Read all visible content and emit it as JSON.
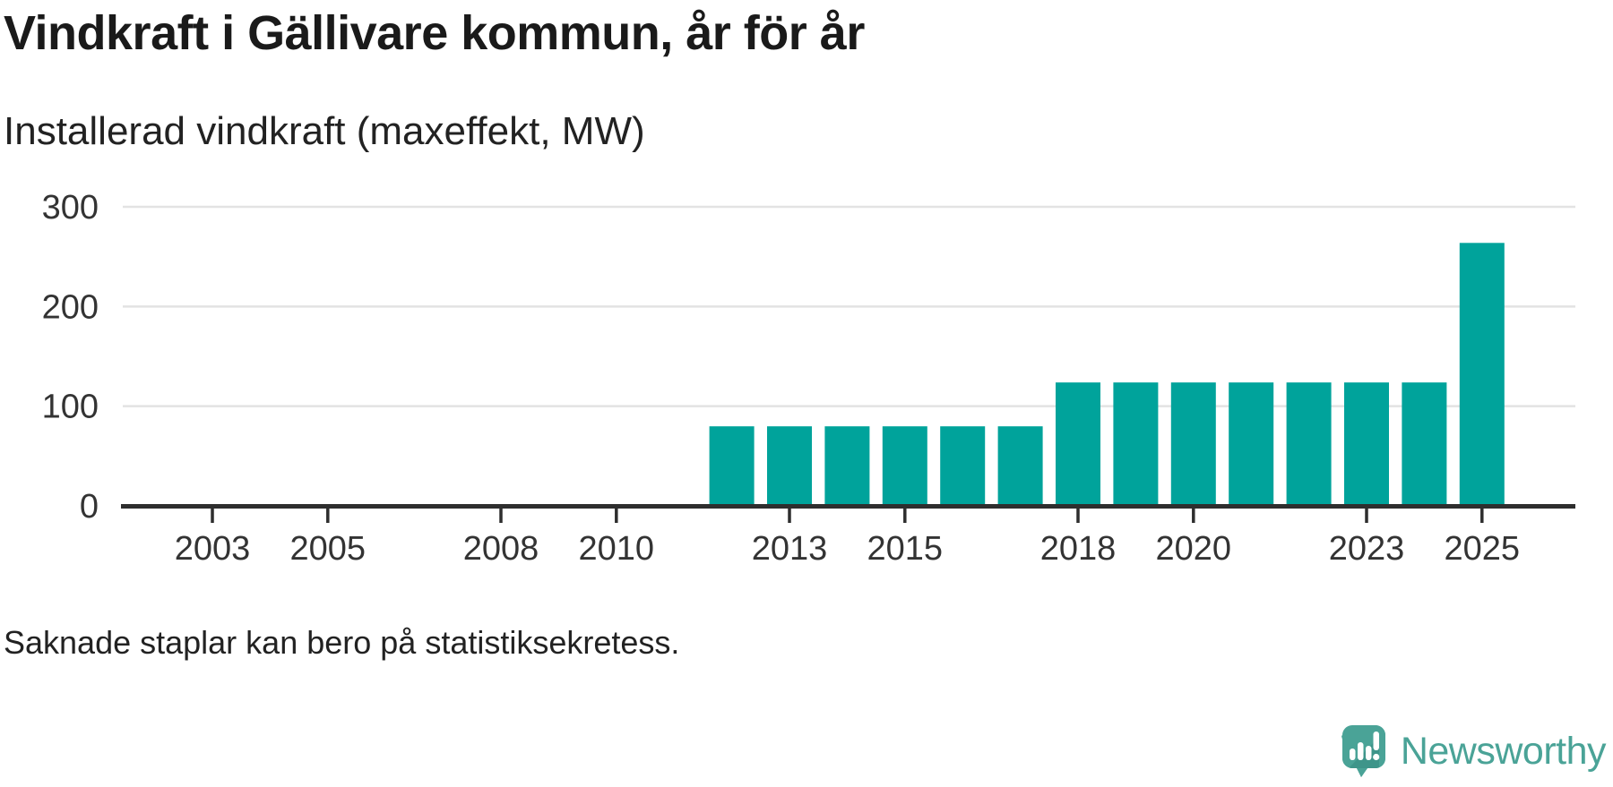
{
  "chart_data": {
    "type": "bar",
    "title": "Vindkraft i Gällivare kommun, år för år",
    "subtitle": "Installerad vindkraft (maxeffekt, MW)",
    "footnote": "Saknade staplar kan bero på statistiksekretess.",
    "xlabel": "",
    "ylabel": "Installerad vindkraft (maxeffekt, MW)",
    "unit": "MW",
    "x": [
      2012,
      2013,
      2014,
      2015,
      2016,
      2017,
      2018,
      2019,
      2020,
      2021,
      2022,
      2023,
      2024,
      2025
    ],
    "values": [
      78,
      78,
      78,
      78,
      78,
      78,
      122,
      122,
      122,
      122,
      122,
      122,
      122,
      262
    ],
    "xlim": [
      2001.4,
      2026.6
    ],
    "ylim": [
      0,
      300
    ],
    "yticks": [
      0,
      100,
      200,
      300
    ],
    "xticks": [
      2003,
      2005,
      2008,
      2010,
      2013,
      2015,
      2018,
      2020,
      2023,
      2025
    ],
    "grid": true,
    "legend_position": "none",
    "bar_color": "#00a39b",
    "axis_color": "#2e2e2e",
    "grid_color": "#e3e3e3",
    "label_color": "#333333"
  },
  "branding": {
    "logo_text": "Newsworthy",
    "logo_color": "#4aa397",
    "logo_icon": "speech-bubble-bar-chart"
  }
}
